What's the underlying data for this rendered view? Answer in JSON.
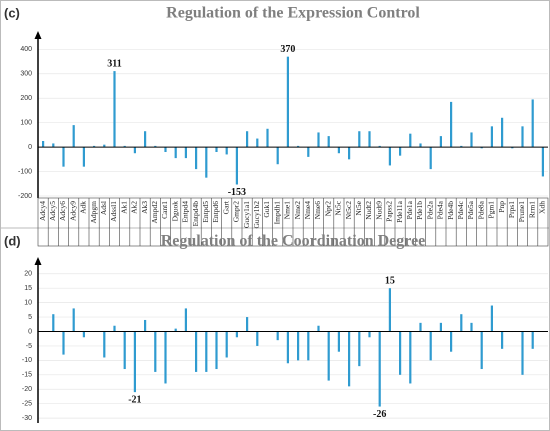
{
  "chart_data": [
    {
      "type": "bar",
      "panel": "(c)",
      "title": "Regulation of the Expression Control",
      "categories": [
        "Adcy4",
        "Adcy5",
        "Adcy6",
        "Adcy9",
        "Adk",
        "Adpgm",
        "Adsl",
        "Adssl1",
        "Ak1",
        "Ak2",
        "Ak3",
        "Ampd2",
        "Cant1",
        "Dguok",
        "Entpd4",
        "Entpd4b",
        "Entpd5",
        "Entpd6",
        "Gart",
        "Gmpr2",
        "Gucy1a1",
        "Gucy1b2",
        "Guk1",
        "Impdh1",
        "Nme1",
        "Nme2",
        "Nme4",
        "Nme6",
        "Npr2",
        "Nt5c",
        "Nt5c2",
        "Nt5e",
        "Nudt2",
        "Nudt9",
        "Papss2",
        "Pde11a",
        "Pde1a",
        "Pde1b",
        "Pde2a",
        "Pde4a",
        "Pde4b",
        "Pde4c",
        "Pde5a",
        "Pde8a",
        "Pgm1",
        "Pnp",
        "Prps1",
        "Prune1",
        "Rrm1",
        "Xdh"
      ],
      "values": [
        25,
        15,
        -80,
        90,
        -80,
        5,
        10,
        311,
        5,
        -25,
        65,
        5,
        -20,
        -45,
        -45,
        -90,
        -125,
        -20,
        -30,
        -153,
        65,
        35,
        75,
        -70,
        370,
        5,
        -40,
        60,
        45,
        -25,
        -50,
        65,
        65,
        5,
        -75,
        -35,
        55,
        15,
        -90,
        45,
        185,
        5,
        60,
        -5,
        85,
        120,
        -5,
        85,
        195,
        -120
      ],
      "labeled": [
        7,
        19,
        24
      ],
      "color": "#2f9bd0",
      "ylim": [
        -200,
        430
      ],
      "yticks": [
        -200,
        -100,
        0,
        100,
        200,
        300,
        400
      ]
    },
    {
      "type": "bar",
      "panel": "(d)",
      "title": "Regulation of the Coordination Degree",
      "values": [
        0,
        6,
        -8,
        8,
        -2,
        0,
        -9,
        2,
        -13,
        -21,
        4,
        -14,
        -18,
        1,
        8,
        -14,
        -14,
        -13,
        -9,
        -2,
        5,
        -5,
        0,
        -3,
        -11,
        -10,
        -10,
        2,
        -17,
        -7,
        -19,
        -12,
        -2,
        -26,
        15,
        -15,
        -18,
        3,
        -10,
        3,
        -7,
        6,
        3,
        -13,
        9,
        -6,
        0,
        -15,
        -6,
        0
      ],
      "labeled": [
        9,
        33,
        34
      ],
      "color": "#2f9bd0",
      "ylim": [
        -31,
        22
      ],
      "yticks": [
        -30,
        -25,
        -20,
        -15,
        -10,
        -5,
        0,
        5,
        10,
        15,
        20
      ]
    }
  ]
}
